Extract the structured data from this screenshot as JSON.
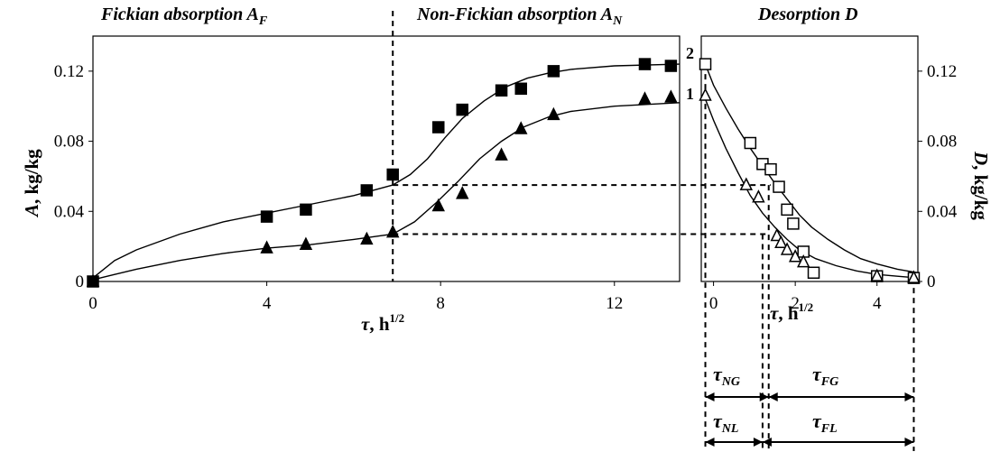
{
  "chart_data": [
    {
      "type": "scatter",
      "panel": "absorption",
      "header_fickian": {
        "main": "Fickian absorption ",
        "var": "A",
        "sub": "F"
      },
      "header_nonfickian": {
        "main": "Non-Fickian absorption ",
        "var": "A",
        "sub": "N"
      },
      "ylabel": {
        "var": "A",
        "rest": ", kg/kg"
      },
      "xlabel": {
        "var": "τ",
        "rest": ", h",
        "sup": "1/2"
      },
      "xlim": [
        0,
        13.5
      ],
      "ylim": [
        0,
        0.14
      ],
      "xticks": [
        "0",
        "4",
        "8",
        "12"
      ],
      "yticks": [
        "0",
        "0.04",
        "0.08",
        "0.12"
      ],
      "series": [
        {
          "name": "2",
          "marker": "square-filled",
          "points": [
            [
              0,
              0
            ],
            [
              4,
              0.037
            ],
            [
              4.9,
              0.041
            ],
            [
              6.3,
              0.052
            ],
            [
              6.9,
              0.061
            ],
            [
              7.95,
              0.088
            ],
            [
              8.5,
              0.098
            ],
            [
              9.4,
              0.109
            ],
            [
              9.85,
              0.11
            ],
            [
              10.6,
              0.12
            ],
            [
              12.7,
              0.124
            ],
            [
              13.3,
              0.123
            ]
          ],
          "curve": [
            [
              0,
              0.002
            ],
            [
              0.5,
              0.012
            ],
            [
              1,
              0.018
            ],
            [
              2,
              0.027
            ],
            [
              3,
              0.034
            ],
            [
              4,
              0.039
            ],
            [
              5,
              0.044
            ],
            [
              6,
              0.049
            ],
            [
              6.9,
              0.055
            ],
            [
              7.3,
              0.061
            ],
            [
              7.7,
              0.07
            ],
            [
              8.1,
              0.082
            ],
            [
              8.5,
              0.093
            ],
            [
              9,
              0.103
            ],
            [
              9.5,
              0.111
            ],
            [
              10,
              0.116
            ],
            [
              10.5,
              0.119
            ],
            [
              11,
              0.121
            ],
            [
              12,
              0.123
            ],
            [
              13.5,
              0.124
            ]
          ]
        },
        {
          "name": "1",
          "marker": "triangle-filled",
          "points": [
            [
              0,
              0
            ],
            [
              4,
              0.019
            ],
            [
              4.9,
              0.021
            ],
            [
              6.3,
              0.024
            ],
            [
              6.9,
              0.028
            ],
            [
              7.95,
              0.043
            ],
            [
              8.5,
              0.05
            ],
            [
              9.4,
              0.072
            ],
            [
              9.85,
              0.087
            ],
            [
              10.6,
              0.095
            ],
            [
              12.7,
              0.104
            ],
            [
              13.3,
              0.105
            ]
          ],
          "curve": [
            [
              0,
              0.001
            ],
            [
              0.5,
              0.004
            ],
            [
              1,
              0.007
            ],
            [
              2,
              0.012
            ],
            [
              3,
              0.016
            ],
            [
              4,
              0.019
            ],
            [
              5,
              0.021
            ],
            [
              6,
              0.024
            ],
            [
              6.9,
              0.027
            ],
            [
              7.4,
              0.034
            ],
            [
              7.9,
              0.045
            ],
            [
              8.4,
              0.057
            ],
            [
              8.9,
              0.07
            ],
            [
              9.4,
              0.08
            ],
            [
              9.9,
              0.088
            ],
            [
              10.5,
              0.094
            ],
            [
              11,
              0.097
            ],
            [
              12,
              0.1
            ],
            [
              13.5,
              0.102
            ]
          ]
        }
      ],
      "separator_x": 6.9
    },
    {
      "type": "scatter",
      "panel": "desorption",
      "header": {
        "main": "Desorption ",
        "var": "D"
      },
      "ylabel": {
        "var": "D",
        "rest": ", kg/kg"
      },
      "xlabel": {
        "var": "τ",
        "rest": ", h",
        "sup": "1/2"
      },
      "xlim": [
        -0.3,
        5
      ],
      "ylim": [
        0,
        0.14
      ],
      "xticks": [
        "0",
        "2",
        "4"
      ],
      "yticks": [
        "0",
        "0.04",
        "0.08",
        "0.12"
      ],
      "series": [
        {
          "name": "2",
          "marker": "square-open",
          "points": [
            [
              -0.2,
              0.124
            ],
            [
              0.9,
              0.079
            ],
            [
              1.2,
              0.067
            ],
            [
              1.4,
              0.064
            ],
            [
              1.6,
              0.054
            ],
            [
              1.8,
              0.041
            ],
            [
              1.95,
              0.033
            ],
            [
              2.2,
              0.017
            ],
            [
              2.45,
              0.005
            ],
            [
              4,
              0.003
            ],
            [
              4.9,
              0.002
            ]
          ],
          "curve": [
            [
              -0.2,
              0.124
            ],
            [
              0,
              0.112
            ],
            [
              0.3,
              0.099
            ],
            [
              0.6,
              0.087
            ],
            [
              0.9,
              0.076
            ],
            [
              1.2,
              0.066
            ],
            [
              1.5,
              0.056
            ],
            [
              1.8,
              0.047
            ],
            [
              2.1,
              0.038
            ],
            [
              2.4,
              0.031
            ],
            [
              2.8,
              0.024
            ],
            [
              3.2,
              0.018
            ],
            [
              3.6,
              0.013
            ],
            [
              4,
              0.01
            ],
            [
              4.5,
              0.007
            ],
            [
              5,
              0.005
            ]
          ]
        },
        {
          "name": "1",
          "marker": "triangle-open",
          "points": [
            [
              -0.2,
              0.106
            ],
            [
              0.8,
              0.055
            ],
            [
              1.1,
              0.048
            ],
            [
              1.55,
              0.026
            ],
            [
              1.65,
              0.022
            ],
            [
              1.8,
              0.018
            ],
            [
              2,
              0.014
            ],
            [
              2.2,
              0.011
            ],
            [
              4,
              0.003
            ],
            [
              4.9,
              0.002
            ]
          ],
          "curve": [
            [
              -0.2,
              0.104
            ],
            [
              0,
              0.092
            ],
            [
              0.3,
              0.076
            ],
            [
              0.6,
              0.062
            ],
            [
              0.9,
              0.049
            ],
            [
              1.2,
              0.039
            ],
            [
              1.5,
              0.031
            ],
            [
              1.8,
              0.024
            ],
            [
              2.1,
              0.018
            ],
            [
              2.5,
              0.013
            ],
            [
              3,
              0.009
            ],
            [
              3.5,
              0.006
            ],
            [
              4,
              0.004
            ],
            [
              4.5,
              0.003
            ],
            [
              5,
              0.002
            ]
          ]
        }
      ]
    }
  ],
  "guide_levels": [
    0.055,
    0.027
  ],
  "intervals": [
    {
      "var": "τ",
      "sub": "NG"
    },
    {
      "var": "τ",
      "sub": "FG"
    },
    {
      "var": "τ",
      "sub": "NL"
    },
    {
      "var": "τ",
      "sub": "FL"
    }
  ],
  "curve_labels": [
    "2",
    "1"
  ]
}
